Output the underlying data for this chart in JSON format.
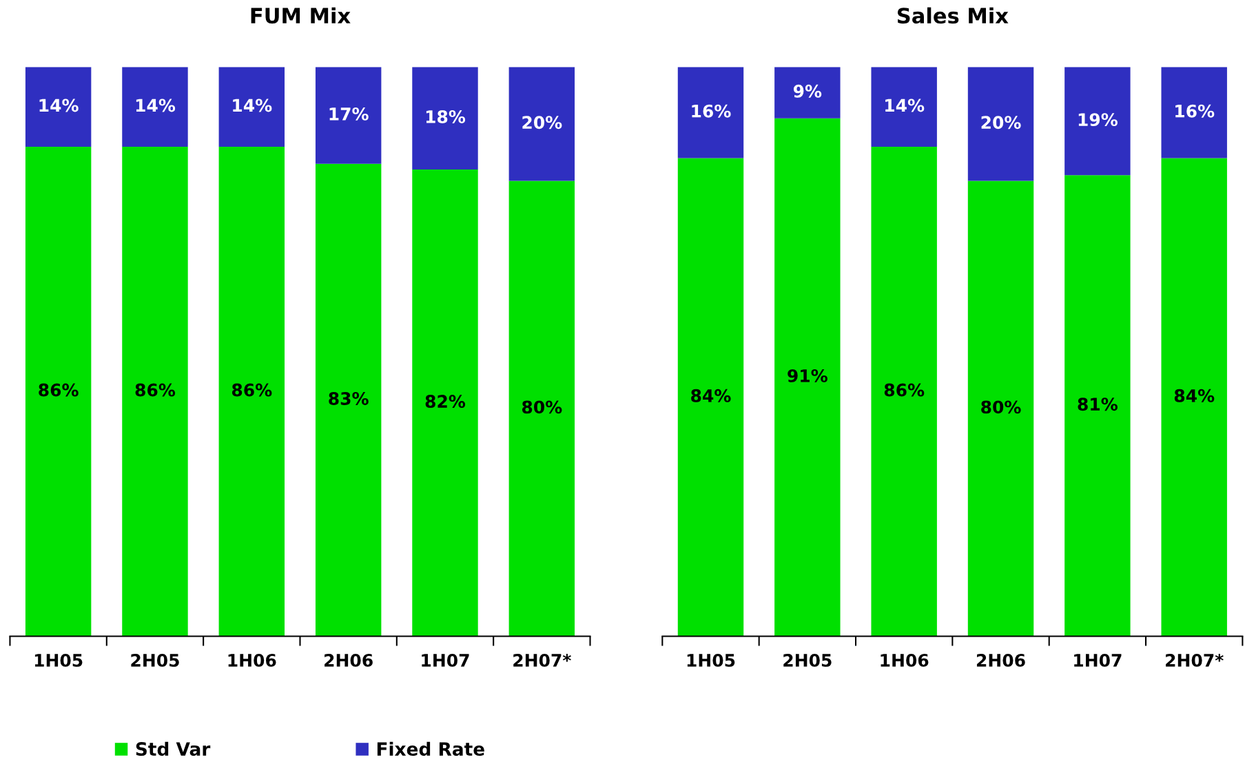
{
  "chart_data": [
    {
      "type": "bar",
      "title": "FUM Mix",
      "categories": [
        "1H05",
        "2H05",
        "1H06",
        "2H06",
        "1H07",
        "2H07*"
      ],
      "stacked": true,
      "ylim": [
        0,
        100
      ],
      "tick_labels": "x",
      "legend": "bottom",
      "series": [
        {
          "name": "Std Var",
          "color": "#00e000",
          "values": [
            86,
            86,
            86,
            83,
            82,
            80
          ],
          "value_labels": [
            "86%",
            "86%",
            "86%",
            "83%",
            "82%",
            "80%"
          ]
        },
        {
          "name": "Fixed Rate",
          "color": "#2f2fc0",
          "values": [
            14,
            14,
            14,
            17,
            18,
            20
          ],
          "value_labels": [
            "14%",
            "14%",
            "14%",
            "17%",
            "18%",
            "20%"
          ]
        }
      ]
    },
    {
      "type": "bar",
      "title": "Sales Mix",
      "categories": [
        "1H05",
        "2H05",
        "1H06",
        "2H06",
        "1H07",
        "2H07*"
      ],
      "stacked": true,
      "ylim": [
        0,
        100
      ],
      "tick_labels": "x",
      "series": [
        {
          "color": "#00e000",
          "values": [
            84,
            91,
            86,
            80,
            81,
            84
          ],
          "value_labels": [
            "84%",
            "91%",
            "86%",
            "80%",
            "81%",
            "84%"
          ]
        },
        {
          "color": "#2f2fc0",
          "values": [
            16,
            9,
            14,
            20,
            19,
            16
          ],
          "value_labels": [
            "16%",
            "9%",
            "14%",
            "20%",
            "19%",
            "16%"
          ]
        }
      ]
    }
  ]
}
